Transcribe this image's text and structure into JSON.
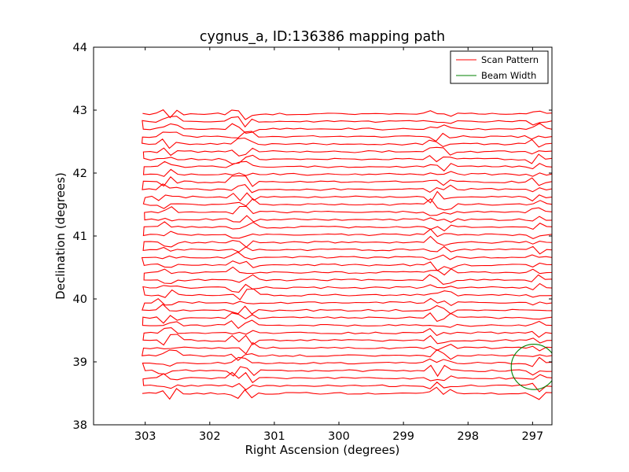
{
  "chart_data": {
    "type": "line",
    "title": "cygnus_a, ID:136386 mapping path",
    "xlabel": "Right Ascension (degrees)",
    "ylabel": "Declination (degrees)",
    "xlim": [
      303.8,
      296.7
    ],
    "ylim": [
      38,
      44
    ],
    "x_ticks": [
      "303",
      "302",
      "301",
      "300",
      "299",
      "298",
      "297"
    ],
    "x_tick_values": [
      303,
      302,
      301,
      300,
      299,
      298,
      297
    ],
    "y_ticks": [
      "38",
      "39",
      "40",
      "41",
      "42",
      "43",
      "44"
    ],
    "y_tick_values": [
      38,
      39,
      40,
      41,
      42,
      43,
      44
    ],
    "grid": false,
    "legend_position": "top-right",
    "series": [
      {
        "name": "Scan Pattern",
        "color": "#ff0000",
        "kind": "raster",
        "dec_start": 38.5,
        "dec_end": 43.0,
        "dec_step": 0.12,
        "ra_east": 303.0,
        "ra_west": 296.7
      },
      {
        "name": "Beam Width",
        "color": "#008000",
        "kind": "circle",
        "center": [
          296.98,
          38.92
        ],
        "radius_deg": 0.36
      }
    ]
  }
}
